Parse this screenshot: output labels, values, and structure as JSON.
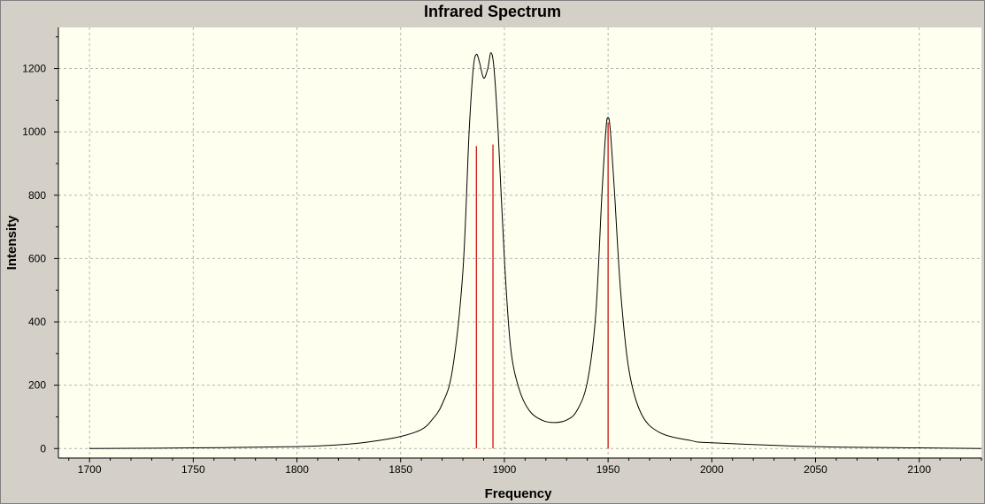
{
  "chart_data": {
    "type": "line",
    "title": "Infrared Spectrum",
    "xlabel": "Frequency",
    "ylabel": "Intensity",
    "xlim": [
      1685,
      2130
    ],
    "ylim": [
      -30,
      1330
    ],
    "x_ticks": [
      1700,
      1750,
      1800,
      1850,
      1900,
      1950,
      2000,
      2050,
      2100
    ],
    "y_ticks": [
      0,
      200,
      400,
      600,
      800,
      1000,
      1200
    ],
    "grid": true,
    "background_color": "#fffff0",
    "series": [
      {
        "name": "",
        "color": "#000000",
        "points": [
          [
            1700,
            0
          ],
          [
            1750,
            2
          ],
          [
            1800,
            6
          ],
          [
            1825,
            14
          ],
          [
            1840,
            26
          ],
          [
            1850,
            38
          ],
          [
            1860,
            60
          ],
          [
            1865,
            90
          ],
          [
            1870,
            140
          ],
          [
            1875,
            250
          ],
          [
            1880,
            560
          ],
          [
            1883,
            1000
          ],
          [
            1885,
            1200
          ],
          [
            1886.5,
            1245
          ],
          [
            1888,
            1220
          ],
          [
            1890,
            1170
          ],
          [
            1892,
            1200
          ],
          [
            1893.5,
            1250
          ],
          [
            1895,
            1200
          ],
          [
            1897,
            1000
          ],
          [
            1900,
            600
          ],
          [
            1903,
            320
          ],
          [
            1907,
            190
          ],
          [
            1912,
            120
          ],
          [
            1918,
            90
          ],
          [
            1924,
            82
          ],
          [
            1930,
            90
          ],
          [
            1935,
            120
          ],
          [
            1940,
            210
          ],
          [
            1944,
            420
          ],
          [
            1947,
            800
          ],
          [
            1949,
            1010
          ],
          [
            1950,
            1045
          ],
          [
            1951,
            1010
          ],
          [
            1953,
            820
          ],
          [
            1956,
            500
          ],
          [
            1960,
            250
          ],
          [
            1966,
            110
          ],
          [
            1975,
            50
          ],
          [
            1990,
            25
          ],
          [
            2000,
            18
          ],
          [
            2050,
            6
          ],
          [
            2100,
            2
          ],
          [
            2130,
            0
          ]
        ]
      }
    ],
    "sticks": {
      "color": "#cc0000",
      "bars": [
        {
          "x": 1886.5,
          "y": 955
        },
        {
          "x": 1894.5,
          "y": 960
        },
        {
          "x": 1950,
          "y": 1030
        }
      ]
    }
  }
}
